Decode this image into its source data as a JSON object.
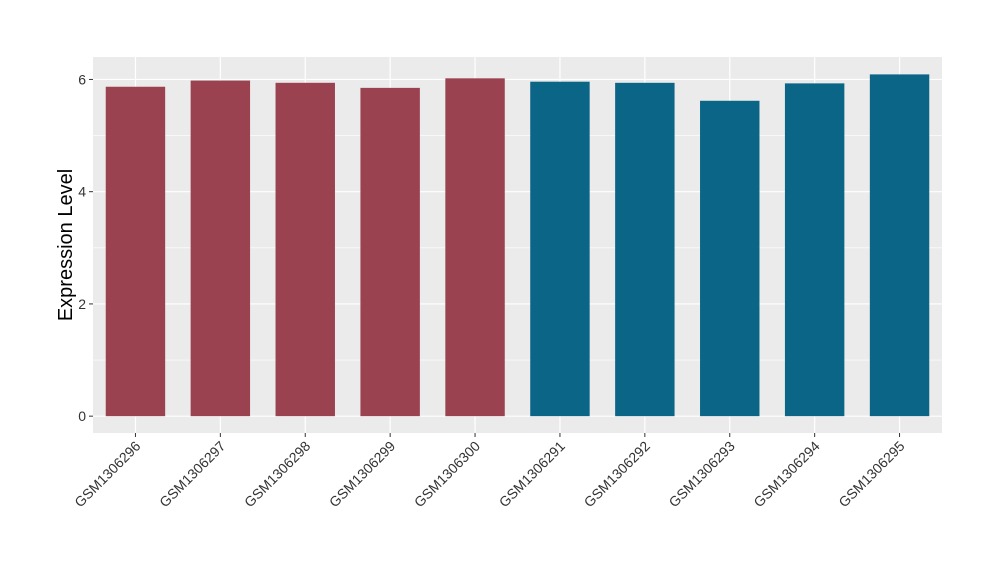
{
  "chart_data": {
    "type": "bar",
    "title": "",
    "xlabel": "",
    "ylabel": "Expression Level",
    "ylim": [
      -0.3,
      6.4
    ],
    "yticks": [
      0,
      2,
      4,
      6
    ],
    "grid": true,
    "categories": [
      "GSM1306296",
      "GSM1306297",
      "GSM1306298",
      "GSM1306299",
      "GSM1306300",
      "GSM1306291",
      "GSM1306292",
      "GSM1306293",
      "GSM1306294",
      "GSM1306295"
    ],
    "values": [
      5.87,
      5.98,
      5.94,
      5.85,
      6.02,
      5.96,
      5.94,
      5.62,
      5.93,
      6.09
    ],
    "bar_colors": [
      "#9a4250",
      "#9a4250",
      "#9a4250",
      "#9a4250",
      "#9a4250",
      "#0b6587",
      "#0b6587",
      "#0b6587",
      "#0b6587",
      "#0b6587"
    ],
    "panel_background": "#ebebeb"
  }
}
